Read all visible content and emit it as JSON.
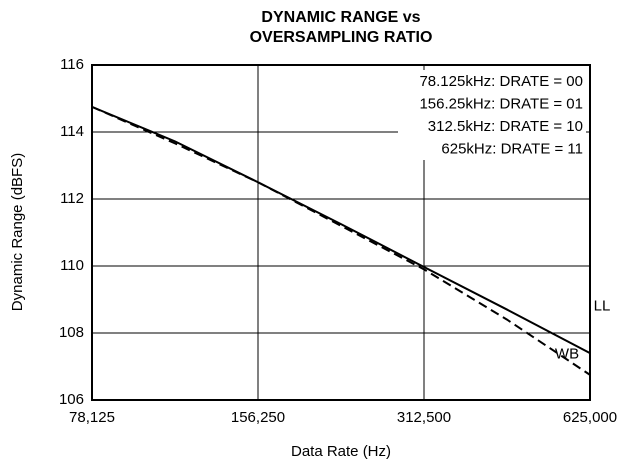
{
  "chart_data": {
    "type": "line",
    "title": [
      "DYNAMIC RANGE vs",
      "OVERSAMPLING RATIO"
    ],
    "xlabel": "Data Rate (Hz)",
    "ylabel": "Dynamic Range (dBFS)",
    "xscale": "log",
    "x": [
      78125,
      110485,
      156250,
      220971,
      312500,
      441942,
      625000
    ],
    "series": [
      {
        "name": "LL",
        "color": "#000000",
        "linestyle": "solid",
        "values": [
          114.75,
          113.72,
          112.5,
          111.25,
          109.97,
          108.7,
          107.4
        ]
      },
      {
        "name": "WB",
        "color": "#000000",
        "linestyle": "dashed",
        "values": [
          114.75,
          113.66,
          112.5,
          111.2,
          109.9,
          108.4,
          106.75
        ]
      }
    ],
    "xlim": [
      78125,
      625000
    ],
    "xticks": [
      {
        "value": 78125,
        "label": "78,125"
      },
      {
        "value": 156250,
        "label": "156,250"
      },
      {
        "value": 312500,
        "label": "312,500"
      },
      {
        "value": 625000,
        "label": "625,000"
      }
    ],
    "ylim": [
      106,
      116
    ],
    "yticks": [
      106,
      108,
      110,
      112,
      114,
      116
    ],
    "grid": true,
    "notes": [
      "78.125kHz: DRATE = 00",
      "156.25kHz: DRATE = 01",
      "312.5kHz: DRATE = 10",
      "625kHz: DRATE = 11"
    ]
  }
}
